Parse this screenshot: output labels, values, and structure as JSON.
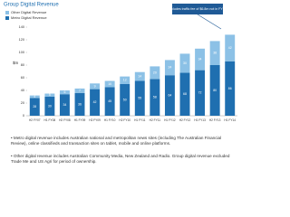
{
  "chart_data": {
    "type": "bar",
    "stacked": true,
    "title": "Group Digital Revenue",
    "y_label": "$m",
    "annotation": "Includes traffic fee of $6.8m not in FY14",
    "categories": [
      "H2 FY07",
      "H1 FY08",
      "H2 FY08",
      "H1 FY09",
      "H2 FY09",
      "H1 FY10",
      "H2 FY10",
      "H1 FY11",
      "H2 FY11",
      "H1 FY12",
      "H2 FY12",
      "H1 FY13",
      "H2 FY13",
      "H1 FY14"
    ],
    "series": [
      {
        "name": "Metro Digital Revenue",
        "color": "#1f6fb0",
        "values": [
          28,
          30,
          34,
          36,
          42,
          45,
          50,
          55,
          58,
          64,
          68,
          72,
          80,
          86
        ]
      },
      {
        "name": "Other Digital Revenue",
        "color": "#8cc1e6",
        "values": [
          4,
          5,
          6,
          7,
          9,
          10,
          12,
          14,
          20,
          24,
          30,
          34,
          38,
          42
        ]
      }
    ],
    "ylim": [
      0,
      140
    ],
    "yticks": [
      0,
      20,
      40,
      60,
      80,
      100,
      120,
      140
    ],
    "grid": false,
    "notes": [
      "Metro digital revenue includes Australian national and metropolitan news sites (including The Australian Financial Review), online classifieds and transaction sites on tablet, mobile and online platforms.",
      "Other digital revenue includes Australian Community Media, New Zealand and Radio. Group digital revenue excluded Trade Me and US Agri for period of ownership."
    ]
  }
}
